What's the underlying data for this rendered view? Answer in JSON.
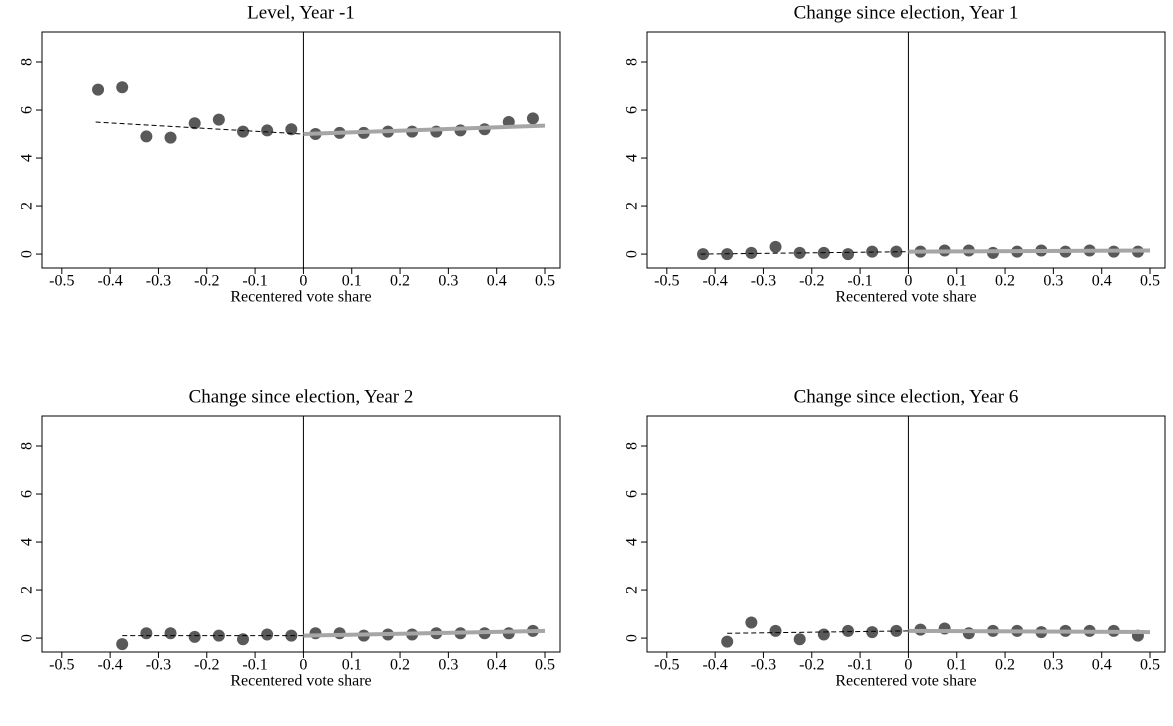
{
  "chart_data": [
    {
      "type": "scatter",
      "title": "Level, Year -1",
      "x_label": "Recentered vote share",
      "x": [
        -0.425,
        -0.375,
        -0.325,
        -0.275,
        -0.225,
        -0.175,
        -0.125,
        -0.075,
        -0.025,
        0.025,
        0.075,
        0.125,
        0.175,
        0.225,
        0.275,
        0.325,
        0.375,
        0.425,
        0.475
      ],
      "values": [
        6.85,
        6.95,
        4.9,
        4.85,
        5.45,
        5.6,
        5.1,
        5.15,
        5.2,
        5.0,
        5.05,
        5.05,
        5.1,
        5.1,
        5.1,
        5.15,
        5.2,
        5.5,
        5.65
      ],
      "color": "#595959",
      "fits": [
        {
          "x": [
            -0.43,
            0
          ],
          "values": [
            5.5,
            5.0
          ],
          "color": "#000000",
          "dashed": true
        },
        {
          "x": [
            0,
            0.5
          ],
          "values": [
            5.0,
            5.35
          ],
          "color": "#a6a6a6",
          "dashed": false
        }
      ],
      "vline": 0,
      "xlim": [
        -0.541,
        0.531
      ],
      "ylim": [
        -0.58,
        9.25
      ],
      "xticks": [
        -0.5,
        -0.4,
        -0.3,
        -0.2,
        -0.1,
        0,
        0.1,
        0.2,
        0.3,
        0.4,
        0.5
      ],
      "yticks": [
        0,
        2,
        4,
        6,
        8
      ]
    },
    {
      "type": "scatter",
      "title": "Change since election, Year 1",
      "x_label": "Recentered vote share",
      "x": [
        -0.425,
        -0.375,
        -0.325,
        -0.275,
        -0.225,
        -0.175,
        -0.125,
        -0.075,
        -0.025,
        0.025,
        0.075,
        0.125,
        0.175,
        0.225,
        0.275,
        0.325,
        0.375,
        0.425,
        0.475
      ],
      "values": [
        0.0,
        0.0,
        0.05,
        0.3,
        0.05,
        0.05,
        0.0,
        0.1,
        0.1,
        0.1,
        0.15,
        0.15,
        0.05,
        0.1,
        0.15,
        0.1,
        0.15,
        0.1,
        0.1
      ],
      "color": "#595959",
      "fits": [
        {
          "x": [
            -0.43,
            0
          ],
          "values": [
            0.0,
            0.1
          ],
          "color": "#000000",
          "dashed": true
        },
        {
          "x": [
            0,
            0.5
          ],
          "values": [
            0.1,
            0.15
          ],
          "color": "#a6a6a6",
          "dashed": false
        }
      ],
      "vline": 0,
      "xlim": [
        -0.541,
        0.531
      ],
      "ylim": [
        -0.58,
        9.25
      ],
      "xticks": [
        -0.5,
        -0.4,
        -0.3,
        -0.2,
        -0.1,
        0,
        0.1,
        0.2,
        0.3,
        0.4,
        0.5
      ],
      "yticks": [
        0,
        2,
        4,
        6,
        8
      ]
    },
    {
      "type": "scatter",
      "title": "Change since election, Year 2",
      "x_label": "Recentered vote share",
      "x": [
        -0.375,
        -0.325,
        -0.275,
        -0.225,
        -0.175,
        -0.125,
        -0.075,
        -0.025,
        0.025,
        0.075,
        0.125,
        0.175,
        0.225,
        0.275,
        0.325,
        0.375,
        0.425,
        0.475
      ],
      "values": [
        -0.25,
        0.2,
        0.2,
        0.05,
        0.1,
        -0.05,
        0.15,
        0.1,
        0.2,
        0.2,
        0.1,
        0.15,
        0.15,
        0.2,
        0.2,
        0.2,
        0.2,
        0.3
      ],
      "color": "#595959",
      "fits": [
        {
          "x": [
            -0.375,
            0
          ],
          "values": [
            0.1,
            0.1
          ],
          "color": "#000000",
          "dashed": true
        },
        {
          "x": [
            0,
            0.5
          ],
          "values": [
            0.1,
            0.3
          ],
          "color": "#a6a6a6",
          "dashed": false
        }
      ],
      "vline": 0,
      "xlim": [
        -0.541,
        0.531
      ],
      "ylim": [
        -0.58,
        9.25
      ],
      "xticks": [
        -0.5,
        -0.4,
        -0.3,
        -0.2,
        -0.1,
        0,
        0.1,
        0.2,
        0.3,
        0.4,
        0.5
      ],
      "yticks": [
        0,
        2,
        4,
        6,
        8
      ]
    },
    {
      "type": "scatter",
      "title": "Change since election, Year 6",
      "x_label": "Recentered vote share",
      "x": [
        -0.375,
        -0.325,
        -0.275,
        -0.225,
        -0.175,
        -0.125,
        -0.075,
        -0.025,
        0.025,
        0.075,
        0.125,
        0.175,
        0.225,
        0.275,
        0.325,
        0.375,
        0.425,
        0.475
      ],
      "values": [
        -0.15,
        0.65,
        0.3,
        -0.05,
        0.15,
        0.3,
        0.25,
        0.3,
        0.35,
        0.4,
        0.2,
        0.3,
        0.3,
        0.25,
        0.3,
        0.3,
        0.3,
        0.1
      ],
      "color": "#595959",
      "fits": [
        {
          "x": [
            -0.375,
            0
          ],
          "values": [
            0.2,
            0.3
          ],
          "color": "#000000",
          "dashed": true
        },
        {
          "x": [
            0,
            0.5
          ],
          "values": [
            0.3,
            0.25
          ],
          "color": "#a6a6a6",
          "dashed": false
        }
      ],
      "vline": 0,
      "xlim": [
        -0.541,
        0.531
      ],
      "ylim": [
        -0.58,
        9.25
      ],
      "xticks": [
        -0.5,
        -0.4,
        -0.3,
        -0.2,
        -0.1,
        0,
        0.1,
        0.2,
        0.3,
        0.4,
        0.5
      ],
      "yticks": [
        0,
        2,
        4,
        6,
        8
      ]
    }
  ]
}
